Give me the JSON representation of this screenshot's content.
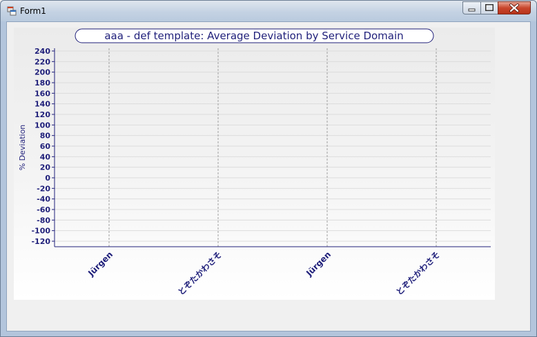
{
  "window": {
    "title": "Form1",
    "controls": {
      "minimize": "minimize-icon",
      "maximize": "maximize-icon",
      "close": "close-icon"
    }
  },
  "chart_data": {
    "type": "line",
    "title": "aaa - def template: Average Deviation by Service Domain",
    "ylabel": "% Deviation",
    "xlabel": "",
    "categories": [
      "Jürgen",
      "とぞたかわさそ",
      "Jürgen",
      "とぞたかわさそ"
    ],
    "yticks": [
      240,
      220,
      200,
      180,
      160,
      140,
      120,
      100,
      80,
      60,
      40,
      20,
      0,
      -20,
      -40,
      -60,
      -80,
      -100,
      -120
    ],
    "ylim": [
      -130,
      245
    ],
    "series": [],
    "grid": true,
    "colors": {
      "axis_text": "#1f1f7a",
      "gridline": "#dcdcdc",
      "category_line": "#a0a0a0",
      "title_border": "#1f1f7a"
    }
  }
}
